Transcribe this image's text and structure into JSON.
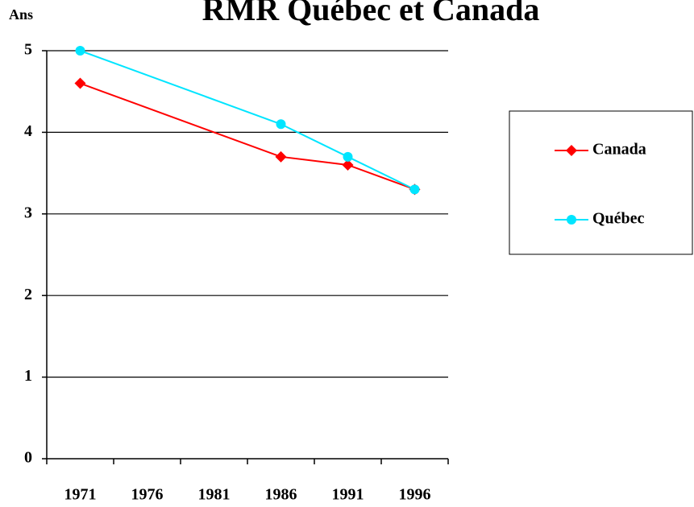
{
  "chart_data": {
    "type": "line",
    "title": "RMR Québec et Canada",
    "ylabel": "Ans",
    "x": [
      1971,
      1986,
      1991,
      1996
    ],
    "xlim": [
      1968.5,
      1998.5
    ],
    "xticks": [
      1971,
      1976,
      1981,
      1986,
      1991,
      1996
    ],
    "ylim": [
      0,
      5
    ],
    "yticks": [
      0,
      1,
      2,
      3,
      4,
      5
    ],
    "grid": true,
    "series": [
      {
        "name": "Canada",
        "color": "#ff0000",
        "marker": "diamond",
        "values": [
          4.6,
          3.7,
          3.6,
          3.3
        ]
      },
      {
        "name": "Québec",
        "color": "#00e5ff",
        "marker": "circle",
        "values": [
          5.0,
          4.1,
          3.7,
          3.3
        ]
      }
    ]
  }
}
